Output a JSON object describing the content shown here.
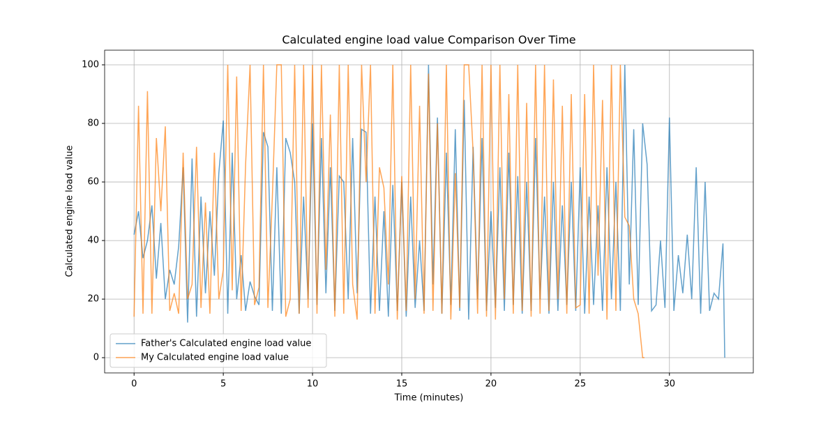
{
  "chart_data": {
    "type": "line",
    "title": "Calculated engine load value Comparison Over Time",
    "x_label": "Time (minutes)",
    "y_label": "Calculated engine load value",
    "xlim": [
      -1.65,
      34.7
    ],
    "ylim": [
      -5.2,
      105
    ],
    "xticks": [
      0,
      5,
      10,
      15,
      20,
      25,
      30
    ],
    "yticks": [
      0,
      20,
      40,
      60,
      80,
      100
    ],
    "grid": true,
    "legend": "lower left",
    "series": [
      {
        "name": "Father's Calculated engine load value",
        "color": "#1f77b4",
        "x": [
          0,
          0.25,
          0.5,
          0.75,
          1,
          1.25,
          1.5,
          1.75,
          2,
          2.25,
          2.5,
          2.75,
          3,
          3.25,
          3.5,
          3.75,
          4,
          4.25,
          4.5,
          4.75,
          5,
          5.25,
          5.5,
          5.75,
          6,
          6.25,
          6.5,
          6.75,
          7,
          7.25,
          7.5,
          7.75,
          8,
          8.25,
          8.5,
          8.75,
          9,
          9.25,
          9.5,
          9.75,
          10,
          10.25,
          10.5,
          10.75,
          11,
          11.25,
          11.5,
          11.75,
          12,
          12.25,
          12.5,
          12.75,
          13,
          13.25,
          13.5,
          13.75,
          14,
          14.25,
          14.5,
          14.75,
          15,
          15.25,
          15.5,
          15.75,
          16,
          16.25,
          16.5,
          16.75,
          17,
          17.25,
          17.5,
          17.75,
          18,
          18.25,
          18.5,
          18.75,
          19,
          19.25,
          19.5,
          19.75,
          20,
          20.25,
          20.5,
          20.75,
          21,
          21.25,
          21.5,
          21.75,
          22,
          22.25,
          22.5,
          22.75,
          23,
          23.25,
          23.5,
          23.75,
          24,
          24.25,
          24.5,
          24.75,
          25,
          25.25,
          25.5,
          25.75,
          26,
          26.25,
          26.5,
          26.75,
          27,
          27.25,
          27.5,
          27.75,
          28,
          28.25,
          28.5,
          28.75,
          29,
          29.25,
          29.5,
          29.75,
          30,
          30.25,
          30.5,
          30.75,
          31,
          31.25,
          31.5,
          31.75,
          32,
          32.25,
          32.5,
          32.75,
          33,
          33.1
        ],
        "values": [
          42,
          50,
          34,
          40,
          52,
          27,
          46,
          20,
          30,
          25,
          38,
          65,
          12,
          68,
          14,
          55,
          22,
          50,
          28,
          63,
          81,
          15,
          70,
          20,
          35,
          16,
          26,
          21,
          18,
          77,
          72,
          16,
          65,
          15,
          75,
          70,
          60,
          15,
          55,
          20,
          80,
          18,
          75,
          22,
          65,
          16,
          62,
          60,
          20,
          75,
          22,
          78,
          77,
          15,
          55,
          16,
          50,
          14,
          59,
          16,
          60,
          14,
          55,
          17,
          40,
          16,
          100,
          25,
          82,
          15,
          70,
          18,
          78,
          16,
          88,
          13,
          72,
          20,
          75,
          16,
          50,
          17,
          65,
          16,
          70,
          18,
          62,
          15,
          60,
          16,
          75,
          20,
          55,
          15,
          60,
          16,
          52,
          18,
          60,
          16,
          65,
          15,
          55,
          18,
          52,
          16,
          65,
          20,
          60,
          16,
          100,
          25,
          78,
          18,
          80,
          66,
          16,
          18,
          40,
          17,
          82,
          16,
          35,
          22,
          42,
          20,
          65,
          15,
          60,
          16,
          22,
          20,
          39,
          0
        ]
      },
      {
        "name": "My Calculated engine load value",
        "color": "#ff7f0e",
        "x": [
          0,
          0.25,
          0.5,
          0.75,
          1,
          1.25,
          1.5,
          1.75,
          2,
          2.25,
          2.5,
          2.75,
          3,
          3.25,
          3.5,
          3.75,
          4,
          4.25,
          4.5,
          4.75,
          5,
          5.25,
          5.5,
          5.75,
          6,
          6.25,
          6.5,
          6.75,
          7,
          7.25,
          7.5,
          7.75,
          8,
          8.25,
          8.5,
          8.75,
          9,
          9.25,
          9.5,
          9.75,
          10,
          10.25,
          10.5,
          10.75,
          11,
          11.25,
          11.5,
          11.75,
          12,
          12.25,
          12.5,
          12.75,
          13,
          13.25,
          13.5,
          13.75,
          14,
          14.25,
          14.5,
          14.75,
          15,
          15.25,
          15.5,
          15.75,
          16,
          16.25,
          16.5,
          16.75,
          17,
          17.25,
          17.5,
          17.75,
          18,
          18.25,
          18.5,
          18.75,
          19,
          19.25,
          19.5,
          19.75,
          20,
          20.25,
          20.5,
          20.75,
          21,
          21.25,
          21.5,
          21.75,
          22,
          22.25,
          22.5,
          22.75,
          23,
          23.25,
          23.5,
          23.75,
          24,
          24.25,
          24.5,
          24.75,
          25,
          25.25,
          25.5,
          25.75,
          26,
          26.25,
          26.5,
          26.75,
          27,
          27.25,
          27.5,
          27.75,
          28,
          28.25,
          28.5,
          28.6
        ],
        "values": [
          14,
          86,
          15,
          91,
          15,
          75,
          50,
          79,
          16,
          22,
          15,
          70,
          20,
          25,
          72,
          17,
          53,
          15,
          70,
          20,
          30,
          100,
          23,
          96,
          16,
          66,
          100,
          18,
          24,
          100,
          17,
          55,
          100,
          100,
          14,
          20,
          100,
          15,
          100,
          17,
          100,
          15,
          100,
          30,
          83,
          14,
          100,
          15,
          100,
          25,
          13,
          100,
          60,
          100,
          15,
          65,
          58,
          25,
          100,
          13,
          62,
          16,
          100,
          20,
          86,
          15,
          97,
          16,
          80,
          15,
          100,
          13,
          63,
          17,
          100,
          100,
          70,
          15,
          100,
          14,
          100,
          13,
          100,
          20,
          90,
          15,
          100,
          16,
          87,
          14,
          100,
          15,
          100,
          16,
          95,
          20,
          86,
          15,
          90,
          17,
          18,
          90,
          15,
          100,
          28,
          88,
          13,
          100,
          16,
          100,
          48,
          45,
          20,
          15,
          0,
          0
        ]
      }
    ]
  }
}
